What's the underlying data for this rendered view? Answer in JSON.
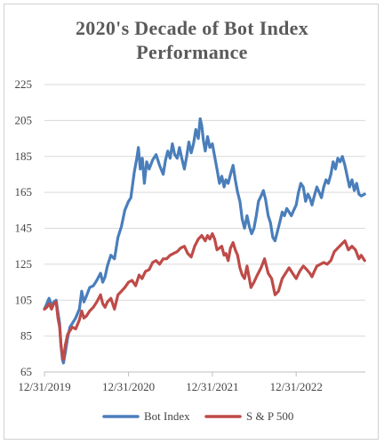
{
  "chart_data": {
    "type": "line",
    "title_line1": "2020's Decade of Bot Index",
    "title_line2": "Performance",
    "ylim": [
      65,
      225
    ],
    "yticks": [
      "65",
      "85",
      "105",
      "125",
      "145",
      "165",
      "185",
      "205",
      "225"
    ],
    "xticks": [
      "12/31/2019",
      "12/31/2020",
      "12/31/2021",
      "12/31/2022"
    ],
    "grid": "horizontal",
    "legend": "bottom",
    "series": [
      {
        "name": "Bot Index",
        "color": "#4a7ebb",
        "points": [
          [
            "2019-12-31",
            100
          ],
          [
            "2020-01-10",
            103
          ],
          [
            "2020-01-20",
            106
          ],
          [
            "2020-01-31",
            102
          ],
          [
            "2020-02-10",
            104
          ],
          [
            "2020-02-20",
            105
          ],
          [
            "2020-02-28",
            98
          ],
          [
            "2020-03-06",
            92
          ],
          [
            "2020-03-12",
            80
          ],
          [
            "2020-03-18",
            72
          ],
          [
            "2020-03-23",
            70
          ],
          [
            "2020-03-31",
            76
          ],
          [
            "2020-04-10",
            84
          ],
          [
            "2020-04-20",
            90
          ],
          [
            "2020-04-30",
            92
          ],
          [
            "2020-05-15",
            95
          ],
          [
            "2020-05-31",
            100
          ],
          [
            "2020-06-10",
            110
          ],
          [
            "2020-06-20",
            104
          ],
          [
            "2020-06-30",
            107
          ],
          [
            "2020-07-15",
            112
          ],
          [
            "2020-07-31",
            113
          ],
          [
            "2020-08-15",
            116
          ],
          [
            "2020-08-31",
            120
          ],
          [
            "2020-09-10",
            115
          ],
          [
            "2020-09-20",
            118
          ],
          [
            "2020-09-30",
            124
          ],
          [
            "2020-10-15",
            130
          ],
          [
            "2020-10-31",
            128
          ],
          [
            "2020-11-15",
            140
          ],
          [
            "2020-11-30",
            146
          ],
          [
            "2020-12-15",
            155
          ],
          [
            "2020-12-31",
            160
          ],
          [
            "2021-01-10",
            162
          ],
          [
            "2021-01-25",
            176
          ],
          [
            "2021-02-05",
            184
          ],
          [
            "2021-02-12",
            190
          ],
          [
            "2021-02-20",
            178
          ],
          [
            "2021-03-01",
            184
          ],
          [
            "2021-03-10",
            170
          ],
          [
            "2021-03-20",
            182
          ],
          [
            "2021-03-31",
            178
          ],
          [
            "2021-04-15",
            183
          ],
          [
            "2021-04-30",
            186
          ],
          [
            "2021-05-15",
            180
          ],
          [
            "2021-05-31",
            175
          ],
          [
            "2021-06-10",
            183
          ],
          [
            "2021-06-20",
            188
          ],
          [
            "2021-06-30",
            184
          ],
          [
            "2021-07-10",
            192
          ],
          [
            "2021-07-20",
            186
          ],
          [
            "2021-07-31",
            184
          ],
          [
            "2021-08-10",
            190
          ],
          [
            "2021-08-20",
            184
          ],
          [
            "2021-08-31",
            178
          ],
          [
            "2021-09-10",
            185
          ],
          [
            "2021-09-20",
            193
          ],
          [
            "2021-09-30",
            187
          ],
          [
            "2021-10-10",
            192
          ],
          [
            "2021-10-20",
            200
          ],
          [
            "2021-10-31",
            195
          ],
          [
            "2021-11-08",
            206
          ],
          [
            "2021-11-15",
            202
          ],
          [
            "2021-11-22",
            194
          ],
          [
            "2021-11-30",
            188
          ],
          [
            "2021-12-10",
            196
          ],
          [
            "2021-12-20",
            190
          ],
          [
            "2021-12-31",
            192
          ],
          [
            "2022-01-10",
            185
          ],
          [
            "2022-01-20",
            178
          ],
          [
            "2022-01-31",
            170
          ],
          [
            "2022-02-10",
            174
          ],
          [
            "2022-02-20",
            168
          ],
          [
            "2022-02-28",
            172
          ],
          [
            "2022-03-10",
            170
          ],
          [
            "2022-03-20",
            175
          ],
          [
            "2022-03-31",
            180
          ],
          [
            "2022-04-10",
            172
          ],
          [
            "2022-04-20",
            165
          ],
          [
            "2022-04-30",
            160
          ],
          [
            "2022-05-10",
            150
          ],
          [
            "2022-05-20",
            145
          ],
          [
            "2022-05-31",
            152
          ],
          [
            "2022-06-10",
            146
          ],
          [
            "2022-06-20",
            142
          ],
          [
            "2022-06-30",
            145
          ],
          [
            "2022-07-10",
            152
          ],
          [
            "2022-07-20",
            160
          ],
          [
            "2022-07-31",
            163
          ],
          [
            "2022-08-10",
            166
          ],
          [
            "2022-08-20",
            161
          ],
          [
            "2022-08-31",
            152
          ],
          [
            "2022-09-10",
            148
          ],
          [
            "2022-09-20",
            140
          ],
          [
            "2022-09-30",
            138
          ],
          [
            "2022-10-10",
            143
          ],
          [
            "2022-10-20",
            148
          ],
          [
            "2022-10-31",
            154
          ],
          [
            "2022-11-10",
            152
          ],
          [
            "2022-11-20",
            156
          ],
          [
            "2022-11-30",
            154
          ],
          [
            "2022-12-10",
            152
          ],
          [
            "2022-12-20",
            155
          ],
          [
            "2022-12-31",
            158
          ],
          [
            "2023-01-10",
            165
          ],
          [
            "2023-01-20",
            170
          ],
          [
            "2023-01-31",
            168
          ],
          [
            "2023-02-10",
            160
          ],
          [
            "2023-02-20",
            164
          ],
          [
            "2023-02-28",
            162
          ],
          [
            "2023-03-10",
            158
          ],
          [
            "2023-03-20",
            163
          ],
          [
            "2023-03-31",
            168
          ],
          [
            "2023-04-10",
            165
          ],
          [
            "2023-04-20",
            162
          ],
          [
            "2023-04-30",
            168
          ],
          [
            "2023-05-10",
            172
          ],
          [
            "2023-05-20",
            170
          ],
          [
            "2023-05-31",
            175
          ],
          [
            "2023-06-10",
            182
          ],
          [
            "2023-06-20",
            178
          ],
          [
            "2023-06-30",
            184
          ],
          [
            "2023-07-10",
            182
          ],
          [
            "2023-07-20",
            185
          ],
          [
            "2023-07-31",
            180
          ],
          [
            "2023-08-10",
            174
          ],
          [
            "2023-08-20",
            168
          ],
          [
            "2023-08-31",
            172
          ],
          [
            "2023-09-10",
            166
          ],
          [
            "2023-09-20",
            170
          ],
          [
            "2023-09-30",
            164
          ],
          [
            "2023-10-10",
            163
          ],
          [
            "2023-10-25",
            164
          ]
        ]
      },
      {
        "name": "S & P 500",
        "color": "#be4b48",
        "points": [
          [
            "2019-12-31",
            100
          ],
          [
            "2020-01-10",
            101
          ],
          [
            "2020-01-20",
            103
          ],
          [
            "2020-01-31",
            100
          ],
          [
            "2020-02-10",
            103
          ],
          [
            "2020-02-20",
            104
          ],
          [
            "2020-02-28",
            95
          ],
          [
            "2020-03-06",
            90
          ],
          [
            "2020-03-12",
            80
          ],
          [
            "2020-03-18",
            74
          ],
          [
            "2020-03-23",
            72
          ],
          [
            "2020-03-31",
            80
          ],
          [
            "2020-04-10",
            86
          ],
          [
            "2020-04-20",
            88
          ],
          [
            "2020-04-30",
            90
          ],
          [
            "2020-05-15",
            89
          ],
          [
            "2020-05-31",
            94
          ],
          [
            "2020-06-10",
            99
          ],
          [
            "2020-06-20",
            95
          ],
          [
            "2020-06-30",
            96
          ],
          [
            "2020-07-15",
            99
          ],
          [
            "2020-07-31",
            101
          ],
          [
            "2020-08-15",
            104
          ],
          [
            "2020-08-31",
            108
          ],
          [
            "2020-09-10",
            103
          ],
          [
            "2020-09-20",
            101
          ],
          [
            "2020-09-30",
            104
          ],
          [
            "2020-10-15",
            106
          ],
          [
            "2020-10-31",
            100
          ],
          [
            "2020-11-15",
            108
          ],
          [
            "2020-11-30",
            110
          ],
          [
            "2020-12-15",
            112
          ],
          [
            "2020-12-31",
            115
          ],
          [
            "2021-01-15",
            116
          ],
          [
            "2021-01-31",
            113
          ],
          [
            "2021-02-15",
            119
          ],
          [
            "2021-02-28",
            117
          ],
          [
            "2021-03-15",
            121
          ],
          [
            "2021-03-31",
            122
          ],
          [
            "2021-04-15",
            126
          ],
          [
            "2021-04-30",
            127
          ],
          [
            "2021-05-15",
            125
          ],
          [
            "2021-05-31",
            128
          ],
          [
            "2021-06-15",
            128
          ],
          [
            "2021-06-30",
            130
          ],
          [
            "2021-07-15",
            131
          ],
          [
            "2021-07-31",
            132
          ],
          [
            "2021-08-15",
            134
          ],
          [
            "2021-08-31",
            135
          ],
          [
            "2021-09-15",
            131
          ],
          [
            "2021-09-30",
            129
          ],
          [
            "2021-10-15",
            135
          ],
          [
            "2021-10-31",
            139
          ],
          [
            "2021-11-15",
            141
          ],
          [
            "2021-11-30",
            138
          ],
          [
            "2021-12-10",
            141
          ],
          [
            "2021-12-20",
            139
          ],
          [
            "2021-12-31",
            142
          ],
          [
            "2022-01-10",
            139
          ],
          [
            "2022-01-20",
            133
          ],
          [
            "2022-01-31",
            134
          ],
          [
            "2022-02-10",
            135
          ],
          [
            "2022-02-20",
            130
          ],
          [
            "2022-02-28",
            131
          ],
          [
            "2022-03-10",
            127
          ],
          [
            "2022-03-20",
            134
          ],
          [
            "2022-03-31",
            137
          ],
          [
            "2022-04-10",
            133
          ],
          [
            "2022-04-20",
            130
          ],
          [
            "2022-04-30",
            123
          ],
          [
            "2022-05-10",
            119
          ],
          [
            "2022-05-20",
            117
          ],
          [
            "2022-05-31",
            124
          ],
          [
            "2022-06-10",
            117
          ],
          [
            "2022-06-17",
            112
          ],
          [
            "2022-06-30",
            115
          ],
          [
            "2022-07-15",
            119
          ],
          [
            "2022-07-31",
            123
          ],
          [
            "2022-08-15",
            128
          ],
          [
            "2022-08-31",
            120
          ],
          [
            "2022-09-15",
            117
          ],
          [
            "2022-09-30",
            108
          ],
          [
            "2022-10-15",
            110
          ],
          [
            "2022-10-31",
            117
          ],
          [
            "2022-11-15",
            120
          ],
          [
            "2022-11-30",
            123
          ],
          [
            "2022-12-15",
            120
          ],
          [
            "2022-12-31",
            117
          ],
          [
            "2023-01-15",
            121
          ],
          [
            "2023-01-31",
            124
          ],
          [
            "2023-02-15",
            122
          ],
          [
            "2023-02-28",
            120
          ],
          [
            "2023-03-10",
            118
          ],
          [
            "2023-03-20",
            121
          ],
          [
            "2023-03-31",
            124
          ],
          [
            "2023-04-15",
            125
          ],
          [
            "2023-04-30",
            126
          ],
          [
            "2023-05-15",
            125
          ],
          [
            "2023-05-31",
            127
          ],
          [
            "2023-06-15",
            132
          ],
          [
            "2023-06-30",
            134
          ],
          [
            "2023-07-15",
            136
          ],
          [
            "2023-07-31",
            138
          ],
          [
            "2023-08-15",
            133
          ],
          [
            "2023-08-31",
            135
          ],
          [
            "2023-09-15",
            133
          ],
          [
            "2023-09-30",
            128
          ],
          [
            "2023-10-10",
            130
          ],
          [
            "2023-10-25",
            127
          ]
        ]
      }
    ]
  }
}
